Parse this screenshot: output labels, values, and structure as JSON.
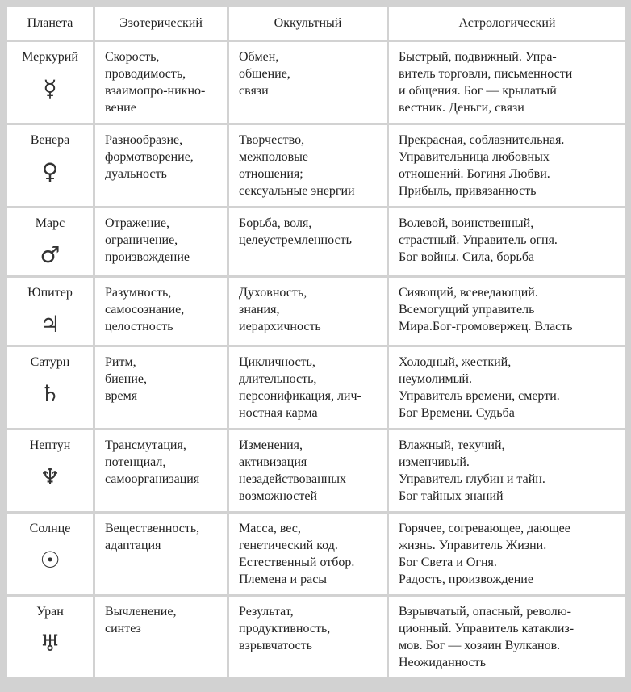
{
  "headers": [
    "Планета",
    "Эзотерический",
    "Оккультный",
    "Астрологический"
  ],
  "rows": [
    {
      "planet": "Меркурий",
      "symbol": "☿",
      "symbol_icon": "mercury-symbol-icon",
      "esoteric": "Скорость,\nпроводимость,\nвзаимопро-никно-\nвение",
      "occult": "Обмен,\nобщение,\nсвязи",
      "astro": "Быстрый, подвижный. Упра-\nвитель торговли, письменности\nи общения. Бог — крылатый\nвестник. Деньги, связи"
    },
    {
      "planet": "Венера",
      "symbol": "♀",
      "symbol_icon": "venus-symbol-icon",
      "esoteric": "Разнообразие,\nформотворение,\nдуальность",
      "occult": "Творчество,\nмежполовые\nотношения;\nсексуальные энергии",
      "astro": "Прекрасная, соблазнительная.\nУправительница любовных\nотношений. Богиня Любви.\nПрибыль, привязанность"
    },
    {
      "planet": "Марс",
      "symbol": "♂",
      "symbol_icon": "mars-symbol-icon",
      "esoteric": "Отражение,\nограничение,\nпроизвождение",
      "occult": "Борьба, воля,\nцелеустремленность",
      "astro": "Волевой, воинственный,\nстрастный. Управитель огня.\nБог войны. Сила, борьба"
    },
    {
      "planet": "Юпитер",
      "symbol": "♃",
      "symbol_icon": "jupiter-symbol-icon",
      "esoteric": "Разумность,\nсамосознание,\nцелостность",
      "occult": "Духовность,\nзнания,\nиерархичность",
      "astro": "Сияющий, всеведающий.\nВсемогущий управитель\nМира.Бог-громовержец. Власть"
    },
    {
      "planet": "Сатурн",
      "symbol": "♄",
      "symbol_icon": "saturn-symbol-icon",
      "esoteric": "Ритм,\nбиение,\nвремя",
      "occult": "Цикличность,\nдлительность,\nперсонификация, лич-\nностная карма",
      "astro": "Холодный, жесткий,\nнеумолимый.\nУправитель времени, смерти.\nБог Времени. Судьба"
    },
    {
      "planet": "Нептун",
      "symbol": "♆",
      "symbol_icon": "neptune-symbol-icon",
      "esoteric": "Трансмутация,\nпотенциал,\nсамоорганизация",
      "occult": "Изменения,\nактивизация\nнезадействованных\nвозможностей",
      "astro": "Влажный, текучий,\nизменчивый.\nУправитель глубин и тайн.\nБог тайных знаний"
    },
    {
      "planet": "Солнце",
      "symbol": "☉",
      "symbol_icon": "sun-symbol-icon",
      "esoteric": "Вещественность,\nадаптация",
      "occult": "Масса, вес,\nгенетический код.\nЕстественный отбор.\nПлемена и расы",
      "astro": "Горячее, согревающее, дающее\nжизнь. Управитель Жизни.\nБог Света и Огня.\nРадость, произвождение"
    },
    {
      "planet": "Уран",
      "symbol": "♅",
      "symbol_icon": "uranus-symbol-icon",
      "esoteric": "Вычленение,\nсинтез",
      "occult": "Результат,\nпродуктивность,\nвзрывчатость",
      "astro": "Взрывчатый, опасный, револю-\nционный. Управитель катаклиз-\nмов. Бог — хозяин Вулканов.\nНеожиданность"
    }
  ]
}
